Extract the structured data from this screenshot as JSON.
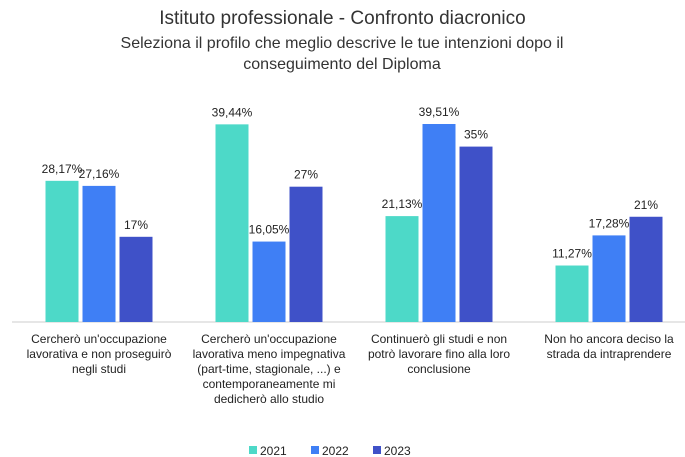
{
  "chart_data": {
    "type": "bar",
    "title": "Istituto professionale - Confronto diacronico",
    "subtitle": "Seleziona il profilo che meglio descrive le tue intenzioni dopo il conseguimento del Diploma",
    "categories": [
      "Cercherò un'occupazione lavorativa e non proseguirò negli studi",
      "Cercherò un'occupazione lavorativa meno impegnativa (part-time, stagionale, ...) e contemporaneamente mi dedicherò allo studio",
      "Continuerò gli studi e non potrò lavorare fino alla loro conclusione",
      "Non ho ancora deciso la strada da intraprendere"
    ],
    "series": [
      {
        "name": "2021",
        "color": "#4dd9c8",
        "values": [
          28.17,
          39.44,
          21.13,
          11.27
        ],
        "value_labels": [
          "28,17%",
          "39,44%",
          "21,13%",
          "11,27%"
        ]
      },
      {
        "name": "2022",
        "color": "#3f7ff5",
        "values": [
          27.16,
          16.05,
          39.51,
          17.28
        ],
        "value_labels": [
          "27,16%",
          "16,05%",
          "39,51%",
          "17,28%"
        ]
      },
      {
        "name": "2023",
        "color": "#3f51c8",
        "values": [
          17,
          27,
          35,
          21
        ],
        "value_labels": [
          "17%",
          "27%",
          "35%",
          "21%"
        ]
      }
    ],
    "legend": "bottom"
  }
}
